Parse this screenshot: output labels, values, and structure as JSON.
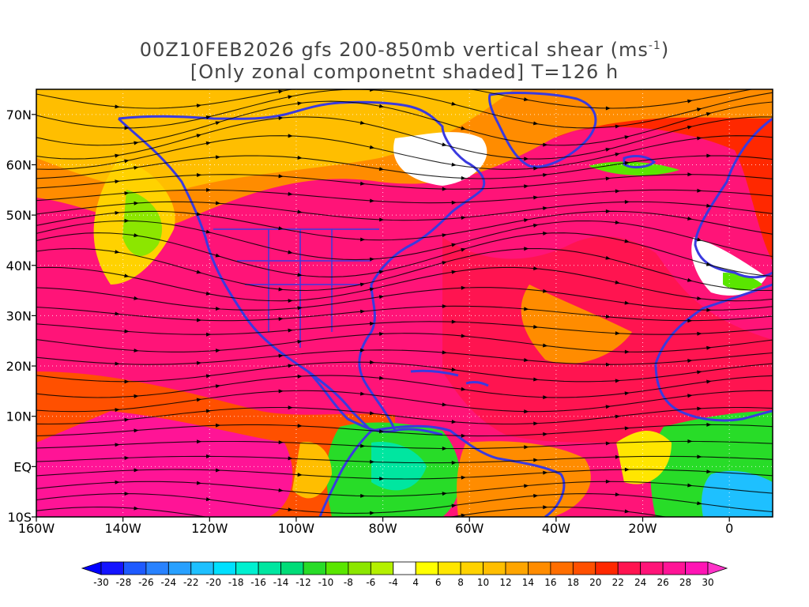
{
  "title": {
    "line1_prefix": "00Z10FEB2026 gfs 200-850mb vertical shear (ms",
    "line1_sup": "-1",
    "line1_suffix": ")",
    "line2": "[Only zonal componetnt shaded] T=126 h"
  },
  "map": {
    "lon_range": [
      -160,
      10
    ],
    "lat_range": [
      -10,
      75
    ],
    "lat_labels": [
      {
        "lat": 70,
        "text": "70N"
      },
      {
        "lat": 60,
        "text": "60N"
      },
      {
        "lat": 50,
        "text": "50N"
      },
      {
        "lat": 40,
        "text": "40N"
      },
      {
        "lat": 30,
        "text": "30N"
      },
      {
        "lat": 20,
        "text": "20N"
      },
      {
        "lat": 10,
        "text": "10N"
      },
      {
        "lat": 0,
        "text": "EQ"
      },
      {
        "lat": -10,
        "text": "10S"
      }
    ],
    "lon_labels": [
      {
        "lon": -160,
        "text": "160W"
      },
      {
        "lon": -140,
        "text": "140W"
      },
      {
        "lon": -120,
        "text": "120W"
      },
      {
        "lon": -100,
        "text": "100W"
      },
      {
        "lon": -80,
        "text": "80W"
      },
      {
        "lon": -60,
        "text": "60W"
      },
      {
        "lon": -40,
        "text": "40W"
      },
      {
        "lon": -20,
        "text": "20W"
      },
      {
        "lon": 0,
        "text": "0"
      }
    ],
    "coastline_color": "#3a3adf",
    "streamline_color": "#000000"
  },
  "colorbar": {
    "labels": [
      "-30",
      "-28",
      "-26",
      "-24",
      "-22",
      "-20",
      "-18",
      "-16",
      "-14",
      "-12",
      "-10",
      "-8",
      "-6",
      "-4",
      "4",
      "6",
      "8",
      "10",
      "12",
      "14",
      "16",
      "18",
      "20",
      "22",
      "24",
      "26",
      "28",
      "30"
    ],
    "colors": [
      "#1414ff",
      "#1e5aff",
      "#2882ff",
      "#28a0ff",
      "#1ec0ff",
      "#00e0ff",
      "#00f0d0",
      "#00e6a0",
      "#00dc78",
      "#28dc28",
      "#5ae600",
      "#8ce600",
      "#b4f000",
      "#ffffff",
      "#ffff00",
      "#ffe600",
      "#ffd200",
      "#ffbe00",
      "#ffa500",
      "#ff8c00",
      "#ff6e00",
      "#ff5000",
      "#ff2800",
      "#ff1450",
      "#ff1478",
      "#ff1496",
      "#ff14b4"
    ],
    "under_color": "#0000ff",
    "over_color": "#ff32c8"
  }
}
